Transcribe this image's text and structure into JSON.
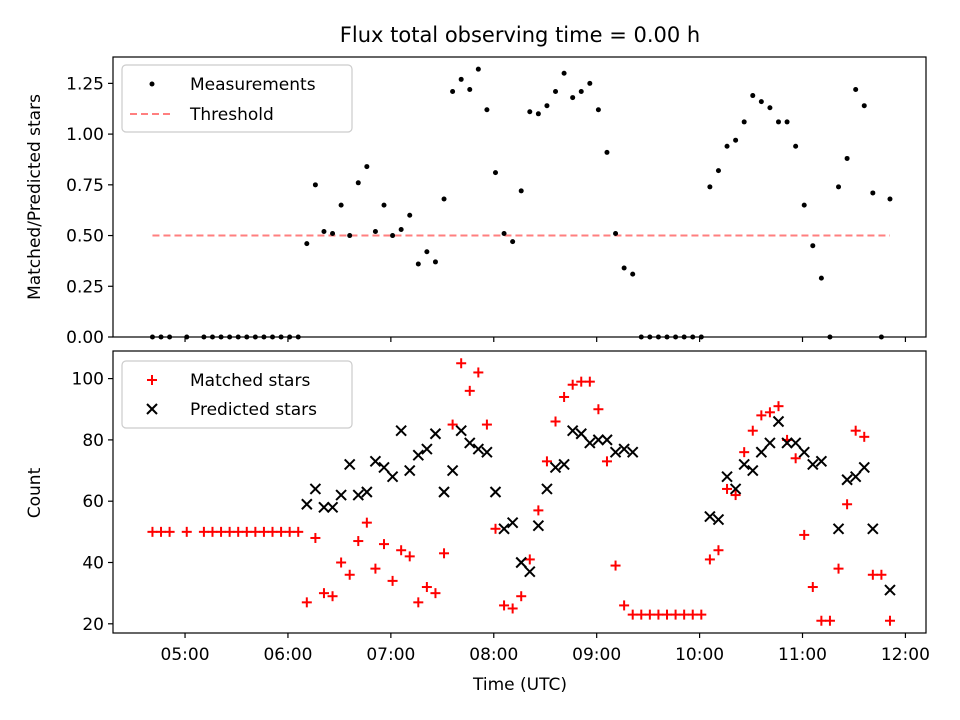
{
  "chart_data": [
    {
      "type": "scatter",
      "title": "Flux total observing time = 0.00 h",
      "xlabel": "",
      "ylabel": "Matched/Predicted stars",
      "xlim": [
        "04:18",
        "12:12"
      ],
      "ylim": [
        0,
        1.38
      ],
      "yticks": [
        0.0,
        0.25,
        0.5,
        0.75,
        1.0,
        1.25
      ],
      "ytick_labels": [
        "0.00",
        "0.25",
        "0.50",
        "0.75",
        "1.00",
        "1.25"
      ],
      "legend": "top-left",
      "legend_entries": [
        "Measurements",
        "Threshold"
      ],
      "series": [
        {
          "name": "Measurements",
          "marker": "dot",
          "color": "#000000",
          "points": [
            [
              "04:41",
              0.0
            ],
            [
              "04:46",
              0.0
            ],
            [
              "04:51",
              0.0
            ],
            [
              "05:01",
              0.0
            ],
            [
              "05:11",
              0.0
            ],
            [
              "05:16",
              0.0
            ],
            [
              "05:21",
              0.0
            ],
            [
              "05:26",
              0.0
            ],
            [
              "05:31",
              0.0
            ],
            [
              "05:36",
              0.0
            ],
            [
              "05:41",
              0.0
            ],
            [
              "05:46",
              0.0
            ],
            [
              "05:51",
              0.0
            ],
            [
              "05:56",
              0.0
            ],
            [
              "06:01",
              0.0
            ],
            [
              "06:06",
              0.0
            ],
            [
              "06:11",
              0.46
            ],
            [
              "06:16",
              0.75
            ],
            [
              "06:21",
              0.52
            ],
            [
              "06:26",
              0.51
            ],
            [
              "06:31",
              0.65
            ],
            [
              "06:36",
              0.5
            ],
            [
              "06:41",
              0.76
            ],
            [
              "06:46",
              0.84
            ],
            [
              "06:51",
              0.52
            ],
            [
              "06:56",
              0.65
            ],
            [
              "07:01",
              0.5
            ],
            [
              "07:06",
              0.53
            ],
            [
              "07:11",
              0.6
            ],
            [
              "07:16",
              0.36
            ],
            [
              "07:21",
              0.42
            ],
            [
              "07:26",
              0.37
            ],
            [
              "07:31",
              0.68
            ],
            [
              "07:36",
              1.21
            ],
            [
              "07:41",
              1.27
            ],
            [
              "07:46",
              1.22
            ],
            [
              "07:51",
              1.32
            ],
            [
              "07:56",
              1.12
            ],
            [
              "08:01",
              0.81
            ],
            [
              "08:06",
              0.51
            ],
            [
              "08:11",
              0.47
            ],
            [
              "08:16",
              0.72
            ],
            [
              "08:21",
              1.11
            ],
            [
              "08:26",
              1.1
            ],
            [
              "08:31",
              1.14
            ],
            [
              "08:36",
              1.21
            ],
            [
              "08:41",
              1.3
            ],
            [
              "08:46",
              1.18
            ],
            [
              "08:51",
              1.21
            ],
            [
              "08:56",
              1.25
            ],
            [
              "09:01",
              1.12
            ],
            [
              "09:06",
              0.91
            ],
            [
              "09:11",
              0.51
            ],
            [
              "09:16",
              0.34
            ],
            [
              "09:21",
              0.31
            ],
            [
              "09:26",
              0.0
            ],
            [
              "09:31",
              0.0
            ],
            [
              "09:36",
              0.0
            ],
            [
              "09:41",
              0.0
            ],
            [
              "09:46",
              0.0
            ],
            [
              "09:51",
              0.0
            ],
            [
              "09:56",
              0.0
            ],
            [
              "10:01",
              0.0
            ],
            [
              "10:06",
              0.74
            ],
            [
              "10:11",
              0.82
            ],
            [
              "10:16",
              0.94
            ],
            [
              "10:21",
              0.97
            ],
            [
              "10:26",
              1.06
            ],
            [
              "10:31",
              1.19
            ],
            [
              "10:36",
              1.16
            ],
            [
              "10:41",
              1.13
            ],
            [
              "10:46",
              1.06
            ],
            [
              "10:51",
              1.06
            ],
            [
              "10:56",
              0.94
            ],
            [
              "11:01",
              0.65
            ],
            [
              "11:06",
              0.45
            ],
            [
              "11:11",
              0.29
            ],
            [
              "11:16",
              0.0
            ],
            [
              "11:21",
              0.74
            ],
            [
              "11:26",
              0.88
            ],
            [
              "11:31",
              1.22
            ],
            [
              "11:36",
              1.14
            ],
            [
              "11:41",
              0.71
            ],
            [
              "11:46",
              0.0
            ],
            [
              "11:51",
              0.68
            ]
          ]
        },
        {
          "name": "Threshold",
          "line": "dashed",
          "color": "#ff7f7f",
          "x": [
            "04:41",
            "11:51"
          ],
          "y": [
            0.5,
            0.5
          ]
        }
      ]
    },
    {
      "type": "scatter",
      "title": "",
      "xlabel": "Time (UTC)",
      "ylabel": "Count",
      "xlim": [
        "04:18",
        "12:12"
      ],
      "ylim": [
        17,
        109
      ],
      "xticks": [
        "05:00",
        "06:00",
        "07:00",
        "08:00",
        "09:00",
        "10:00",
        "11:00",
        "12:00"
      ],
      "yticks": [
        20,
        40,
        60,
        80,
        100
      ],
      "legend": "top-left",
      "legend_entries": [
        "Matched stars",
        "Predicted stars"
      ],
      "series": [
        {
          "name": "Matched stars",
          "marker": "plus",
          "color": "#ff0000",
          "points": [
            [
              "04:41",
              50
            ],
            [
              "04:46",
              50
            ],
            [
              "04:51",
              50
            ],
            [
              "05:01",
              50
            ],
            [
              "05:11",
              50
            ],
            [
              "05:16",
              50
            ],
            [
              "05:21",
              50
            ],
            [
              "05:26",
              50
            ],
            [
              "05:31",
              50
            ],
            [
              "05:36",
              50
            ],
            [
              "05:41",
              50
            ],
            [
              "05:46",
              50
            ],
            [
              "05:51",
              50
            ],
            [
              "05:56",
              50
            ],
            [
              "06:01",
              50
            ],
            [
              "06:06",
              50
            ],
            [
              "06:11",
              27
            ],
            [
              "06:16",
              48
            ],
            [
              "06:21",
              30
            ],
            [
              "06:26",
              29
            ],
            [
              "06:31",
              40
            ],
            [
              "06:36",
              36
            ],
            [
              "06:41",
              47
            ],
            [
              "06:46",
              53
            ],
            [
              "06:51",
              38
            ],
            [
              "06:56",
              46
            ],
            [
              "07:01",
              34
            ],
            [
              "07:06",
              44
            ],
            [
              "07:11",
              42
            ],
            [
              "07:16",
              27
            ],
            [
              "07:21",
              32
            ],
            [
              "07:26",
              30
            ],
            [
              "07:31",
              43
            ],
            [
              "07:36",
              85
            ],
            [
              "07:41",
              105
            ],
            [
              "07:46",
              96
            ],
            [
              "07:51",
              102
            ],
            [
              "07:56",
              85
            ],
            [
              "08:01",
              51
            ],
            [
              "08:06",
              26
            ],
            [
              "08:11",
              25
            ],
            [
              "08:16",
              29
            ],
            [
              "08:21",
              41
            ],
            [
              "08:26",
              57
            ],
            [
              "08:31",
              73
            ],
            [
              "08:36",
              86
            ],
            [
              "08:41",
              94
            ],
            [
              "08:46",
              98
            ],
            [
              "08:51",
              99
            ],
            [
              "08:56",
              99
            ],
            [
              "09:01",
              90
            ],
            [
              "09:06",
              73
            ],
            [
              "09:11",
              39
            ],
            [
              "09:16",
              26
            ],
            [
              "09:21",
              23
            ],
            [
              "09:26",
              23
            ],
            [
              "09:31",
              23
            ],
            [
              "09:36",
              23
            ],
            [
              "09:41",
              23
            ],
            [
              "09:46",
              23
            ],
            [
              "09:51",
              23
            ],
            [
              "09:56",
              23
            ],
            [
              "10:01",
              23
            ],
            [
              "10:06",
              41
            ],
            [
              "10:11",
              44
            ],
            [
              "10:16",
              64
            ],
            [
              "10:21",
              62
            ],
            [
              "10:26",
              76
            ],
            [
              "10:31",
              83
            ],
            [
              "10:36",
              88
            ],
            [
              "10:41",
              89
            ],
            [
              "10:46",
              91
            ],
            [
              "10:51",
              80
            ],
            [
              "10:56",
              74
            ],
            [
              "11:01",
              49
            ],
            [
              "11:06",
              32
            ],
            [
              "11:11",
              21
            ],
            [
              "11:16",
              21
            ],
            [
              "11:21",
              38
            ],
            [
              "11:26",
              59
            ],
            [
              "11:31",
              83
            ],
            [
              "11:36",
              81
            ],
            [
              "11:41",
              36
            ],
            [
              "11:46",
              36
            ],
            [
              "11:51",
              21
            ]
          ]
        },
        {
          "name": "Predicted stars",
          "marker": "x",
          "color": "#000000",
          "points": [
            [
              "06:11",
              59
            ],
            [
              "06:16",
              64
            ],
            [
              "06:21",
              58
            ],
            [
              "06:26",
              58
            ],
            [
              "06:31",
              62
            ],
            [
              "06:36",
              72
            ],
            [
              "06:41",
              62
            ],
            [
              "06:46",
              63
            ],
            [
              "06:51",
              73
            ],
            [
              "06:56",
              71
            ],
            [
              "07:01",
              68
            ],
            [
              "07:06",
              83
            ],
            [
              "07:11",
              70
            ],
            [
              "07:16",
              75
            ],
            [
              "07:21",
              77
            ],
            [
              "07:26",
              82
            ],
            [
              "07:31",
              63
            ],
            [
              "07:36",
              70
            ],
            [
              "07:41",
              83
            ],
            [
              "07:46",
              79
            ],
            [
              "07:51",
              77
            ],
            [
              "07:56",
              76
            ],
            [
              "08:01",
              63
            ],
            [
              "08:06",
              51
            ],
            [
              "08:11",
              53
            ],
            [
              "08:16",
              40
            ],
            [
              "08:21",
              37
            ],
            [
              "08:26",
              52
            ],
            [
              "08:31",
              64
            ],
            [
              "08:36",
              71
            ],
            [
              "08:41",
              72
            ],
            [
              "08:46",
              83
            ],
            [
              "08:51",
              82
            ],
            [
              "08:56",
              79
            ],
            [
              "09:01",
              80
            ],
            [
              "09:06",
              80
            ],
            [
              "09:11",
              76
            ],
            [
              "09:16",
              77
            ],
            [
              "09:21",
              76
            ],
            [
              "10:06",
              55
            ],
            [
              "10:11",
              54
            ],
            [
              "10:16",
              68
            ],
            [
              "10:21",
              64
            ],
            [
              "10:26",
              72
            ],
            [
              "10:31",
              70
            ],
            [
              "10:36",
              76
            ],
            [
              "10:41",
              79
            ],
            [
              "10:46",
              86
            ],
            [
              "10:51",
              79
            ],
            [
              "10:56",
              79
            ],
            [
              "11:01",
              76
            ],
            [
              "11:06",
              72
            ],
            [
              "11:11",
              73
            ],
            [
              "11:21",
              51
            ],
            [
              "11:26",
              67
            ],
            [
              "11:31",
              68
            ],
            [
              "11:36",
              71
            ],
            [
              "11:41",
              51
            ],
            [
              "11:51",
              31
            ]
          ]
        }
      ]
    }
  ]
}
